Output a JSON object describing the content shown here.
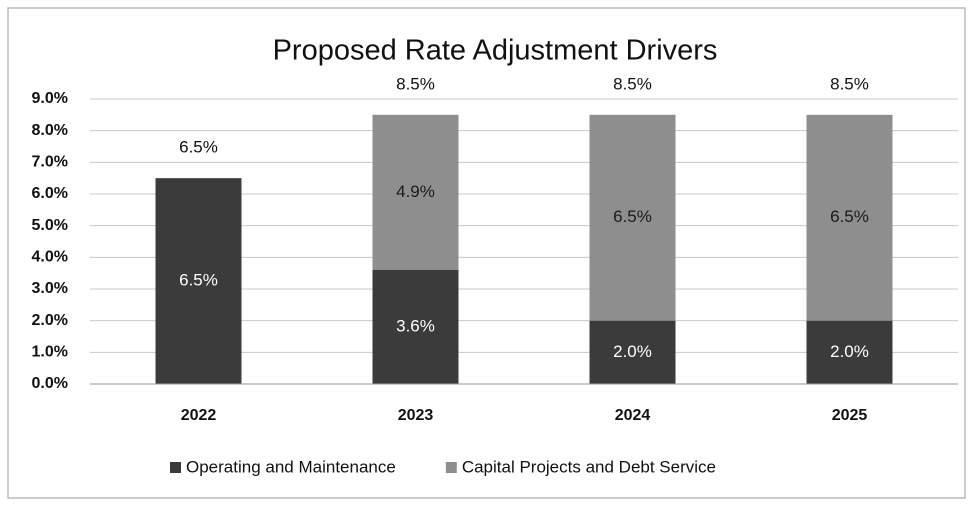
{
  "chart_data": {
    "type": "stacked_bar",
    "title": "Proposed Rate Adjustment Drivers",
    "categories": [
      "2022",
      "2023",
      "2024",
      "2025"
    ],
    "series": [
      {
        "name": "Operating and Maintenance",
        "color": "#3b3b3b",
        "label_color": "#ffffff",
        "values": [
          6.5,
          3.6,
          2.0,
          2.0
        ],
        "value_labels": [
          "6.5%",
          "3.6%",
          "2.0%",
          "2.0%"
        ]
      },
      {
        "name": "Capital Projects and Debt Service",
        "color": "#8e8e8e",
        "label_color": "#1a1a1a",
        "values": [
          null,
          4.9,
          6.5,
          6.5
        ],
        "value_labels": [
          null,
          "4.9%",
          "6.5%",
          "6.5%"
        ]
      }
    ],
    "totals": [
      6.5,
      8.5,
      8.5,
      8.5
    ],
    "total_labels": [
      "6.5%",
      "8.5%",
      "8.5%",
      "8.5%"
    ],
    "ylim": [
      0,
      9
    ],
    "yticks": [
      {
        "value": 0,
        "label": "0.0%"
      },
      {
        "value": 1,
        "label": "1.0%"
      },
      {
        "value": 2,
        "label": "2.0%"
      },
      {
        "value": 3,
        "label": "3.0%"
      },
      {
        "value": 4,
        "label": "4.0%"
      },
      {
        "value": 5,
        "label": "5.0%"
      },
      {
        "value": 6,
        "label": "6.0%"
      },
      {
        "value": 7,
        "label": "7.0%"
      },
      {
        "value": 8,
        "label": "8.0%"
      },
      {
        "value": 9,
        "label": "9.0%"
      }
    ],
    "grid": true,
    "legend": "bottom"
  }
}
